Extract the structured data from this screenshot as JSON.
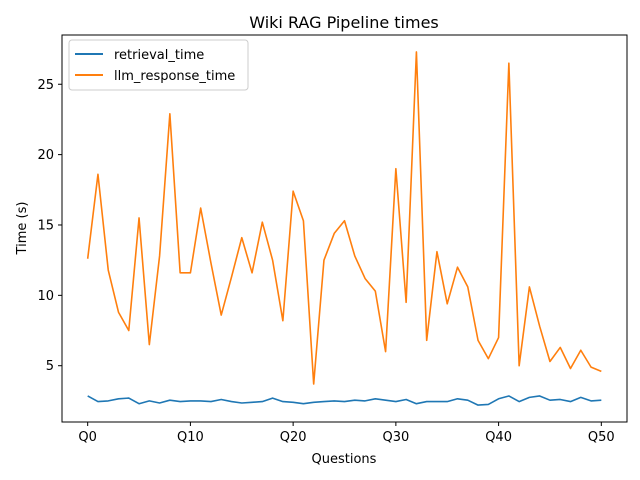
{
  "chart_data": {
    "type": "line",
    "title": "Wiki RAG Pipeline times",
    "xlabel": "Questions",
    "ylabel": "Time (s)",
    "x_tick_labels": [
      "Q0",
      "Q10",
      "Q20",
      "Q30",
      "Q40",
      "Q50"
    ],
    "x_tick_values": [
      0,
      10,
      20,
      30,
      40,
      50
    ],
    "y_tick_values": [
      5,
      10,
      15,
      20,
      25
    ],
    "xlim": [
      -2.5,
      52.5
    ],
    "ylim": [
      1.0,
      28.5
    ],
    "legend_placement": "top-left",
    "grid": false,
    "series": [
      {
        "name": "retrieval_time",
        "color": "#1f77b4",
        "values": [
          2.85,
          2.45,
          2.5,
          2.65,
          2.7,
          2.3,
          2.5,
          2.35,
          2.55,
          2.45,
          2.5,
          2.5,
          2.45,
          2.6,
          2.45,
          2.35,
          2.4,
          2.45,
          2.7,
          2.45,
          2.4,
          2.3,
          2.4,
          2.45,
          2.5,
          2.45,
          2.55,
          2.5,
          2.65,
          2.55,
          2.45,
          2.6,
          2.3,
          2.45,
          2.45,
          2.45,
          2.65,
          2.55,
          2.2,
          2.25,
          2.65,
          2.85,
          2.45,
          2.75,
          2.85,
          2.55,
          2.6,
          2.45,
          2.75,
          2.5,
          2.55
        ]
      },
      {
        "name": "llm_response_time",
        "color": "#ff7f0e",
        "values": [
          12.6,
          18.6,
          11.8,
          8.8,
          7.5,
          15.5,
          6.5,
          12.8,
          22.9,
          11.6,
          11.6,
          16.2,
          12.3,
          8.6,
          11.3,
          14.1,
          11.6,
          15.2,
          12.5,
          8.2,
          17.4,
          15.3,
          3.7,
          12.5,
          14.4,
          15.3,
          12.8,
          11.2,
          10.3,
          6.0,
          19.0,
          9.5,
          27.3,
          6.8,
          13.1,
          9.4,
          12.0,
          10.6,
          6.8,
          5.5,
          7.0,
          26.5,
          5.0,
          10.6,
          7.8,
          5.3,
          6.3,
          4.8,
          6.1,
          4.9,
          4.6
        ]
      }
    ]
  }
}
